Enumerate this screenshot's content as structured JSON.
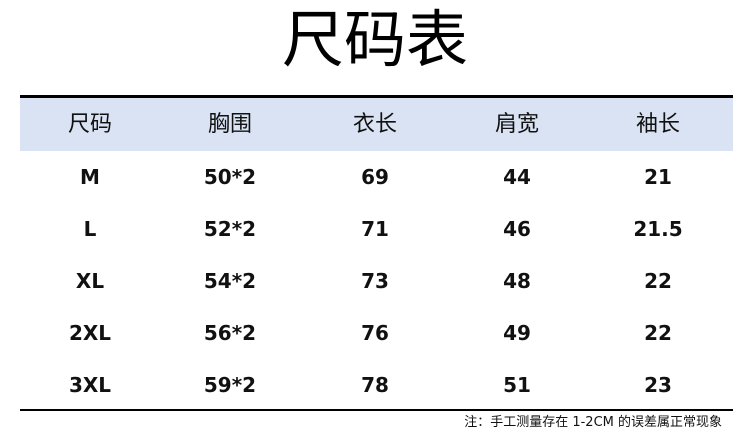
{
  "title": "尺码表",
  "headers": [
    "尺码",
    "胸围",
    "衣长",
    "肩宽",
    "袖长"
  ],
  "rows": [
    [
      "M",
      "50*2",
      "69",
      "44",
      "21"
    ],
    [
      "L",
      "52*2",
      "71",
      "46",
      "21.5"
    ],
    [
      "XL",
      "54*2",
      "73",
      "48",
      "22"
    ],
    [
      "2XL",
      "56*2",
      "76",
      "49",
      "22"
    ],
    [
      "3XL",
      "59*2",
      "78",
      "51",
      "23"
    ]
  ],
  "note": "注：手工测量存在 1-2CM 的误差属正常现象",
  "colors": {
    "header_bg": "#dae3f3",
    "rule": "#000000"
  }
}
